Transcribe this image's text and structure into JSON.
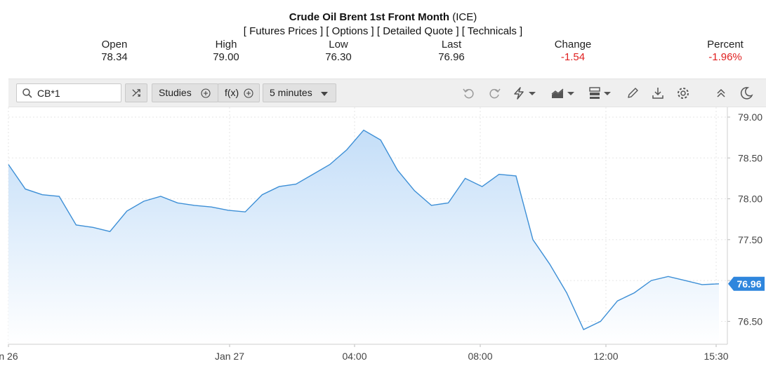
{
  "header": {
    "title": "Crude Oil Brent 1st Front Month",
    "exchange": "(ICE)",
    "links": [
      "[ Futures Prices ]",
      "[ Options ]",
      "[ Detailed Quote ]",
      "[ Technicals ]"
    ],
    "stats": [
      {
        "label": "Open",
        "value": "78.34",
        "negative": false
      },
      {
        "label": "High",
        "value": "79.00",
        "negative": false
      },
      {
        "label": "Low",
        "value": "76.30",
        "negative": false
      },
      {
        "label": "Last",
        "value": "76.96",
        "negative": false
      },
      {
        "label": "Change",
        "value": "-1.54",
        "negative": true
      },
      {
        "label": "Percent",
        "value": "-1.96%",
        "negative": true
      }
    ]
  },
  "toolbar": {
    "search_value": "CB*1",
    "studies_label": "Studies",
    "fx_label": "f(x)",
    "interval_label": "5 minutes",
    "icons": [
      "compare-icon",
      "undo-icon",
      "redo-icon",
      "flash-icon",
      "chart-type-icon",
      "layout-icon",
      "draw-icon",
      "download-icon",
      "settings-icon",
      "collapse-icon",
      "theme-icon"
    ]
  },
  "chart_data": {
    "type": "area",
    "line_color": "#3d8fd6",
    "fill_color": "#cfe5fb",
    "ylim": [
      76.22,
      79.12
    ],
    "y_ticks": [
      "79.00",
      "78.50",
      "78.00",
      "77.50",
      "77.00",
      "76.50"
    ],
    "x_ticks": [
      "n 26",
      "Jan 27",
      "04:00",
      "08:00",
      "12:00",
      "15:30"
    ],
    "last_price_label": "76.96",
    "grid": true,
    "x": [
      "Jan 26 18:30",
      "Jan 26 19:00",
      "Jan 26 19:30",
      "Jan 26 20:00",
      "Jan 26 20:30",
      "Jan 26 21:00",
      "Jan 26 21:30",
      "Jan 26 22:00",
      "Jan 26 22:30",
      "Jan 26 23:00",
      "Jan 26 23:30",
      "Jan 27 00:00",
      "Jan 27 00:30",
      "Jan 27 01:00",
      "Jan 27 01:30",
      "Jan 27 02:00",
      "Jan 27 02:30",
      "Jan 27 03:00",
      "Jan 27 03:30",
      "Jan 27 04:00",
      "Jan 27 04:30",
      "Jan 27 05:00",
      "Jan 27 05:30",
      "Jan 27 06:00",
      "Jan 27 06:30",
      "Jan 27 07:00",
      "Jan 27 07:30",
      "Jan 27 08:00",
      "Jan 27 08:30",
      "Jan 27 09:00",
      "Jan 27 09:30",
      "Jan 27 10:00",
      "Jan 27 10:30",
      "Jan 27 11:00",
      "Jan 27 11:30",
      "Jan 27 12:00",
      "Jan 27 12:30",
      "Jan 27 13:00",
      "Jan 27 13:30",
      "Jan 27 14:00",
      "Jan 27 14:30",
      "Jan 27 15:00",
      "Jan 27 15:30"
    ],
    "series": [
      {
        "values": [
          78.42,
          78.12,
          78.05,
          78.03,
          77.68,
          77.65,
          77.6,
          77.85,
          77.97,
          78.03,
          77.95,
          77.92,
          77.9,
          77.86,
          77.84,
          78.05,
          78.15,
          78.18,
          78.3,
          78.42,
          78.6,
          78.84,
          78.72,
          78.35,
          78.1,
          77.92,
          77.95,
          78.25,
          78.15,
          78.3,
          78.28,
          77.5,
          77.2,
          76.85,
          76.4,
          76.5,
          76.75,
          76.85,
          77.0,
          77.05,
          77.0,
          76.95,
          76.96
        ]
      }
    ]
  }
}
